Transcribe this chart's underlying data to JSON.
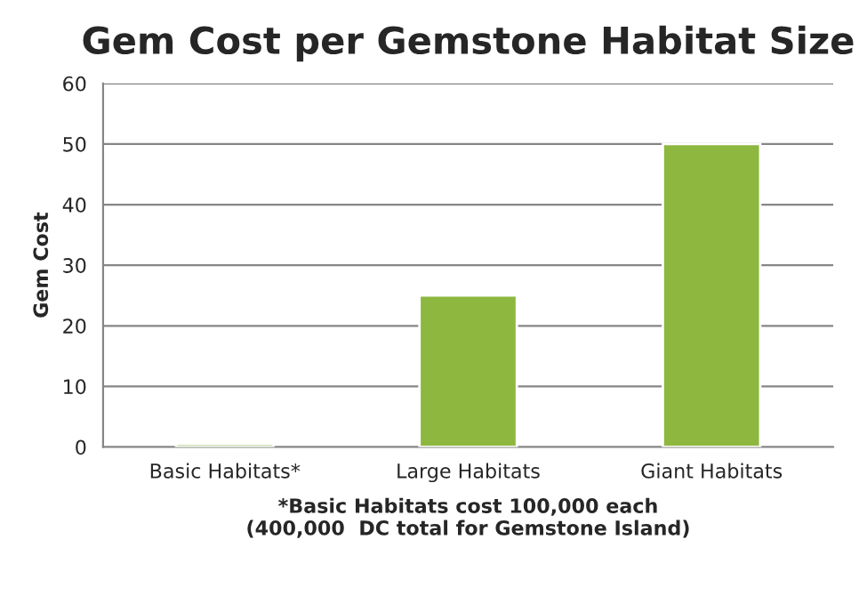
{
  "chart_data": {
    "type": "bar",
    "title": "Gem Cost per Gemstone Habitat Size",
    "ylabel": "Gem Cost",
    "categories": [
      "Basic Habitats*",
      "Large Habitats",
      "Giant Habitats"
    ],
    "values": [
      0.5,
      25,
      50
    ],
    "color": "#8db73f",
    "ylim": [
      0,
      60
    ],
    "yticks": [
      0,
      10,
      20,
      30,
      40,
      50,
      60
    ],
    "grid": "y",
    "annotations": [
      "*Basic Habitats cost 100,000 each\n(400,000  DC total for Gemstone Island)"
    ]
  }
}
